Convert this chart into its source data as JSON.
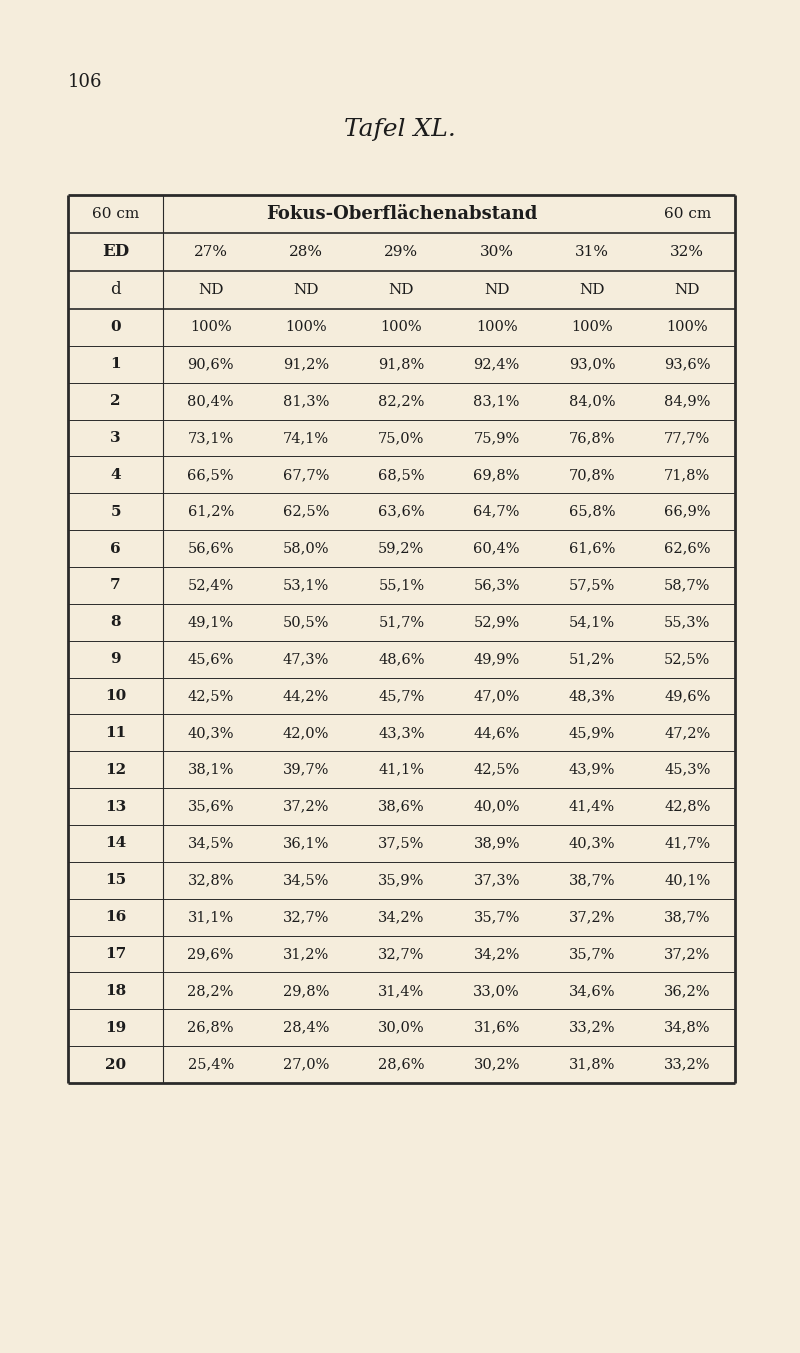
{
  "page_number": "106",
  "title": "Tafel XL.",
  "background_color": "#f5eddc",
  "header_row1_left": "60 cm",
  "header_row1_mid": "Fokus-Oberflächenabstand",
  "header_row1_right": "60 cm",
  "header_row2": [
    "ED",
    "27%",
    "28%",
    "29%",
    "30%",
    "31%",
    "32%"
  ],
  "header_row3": [
    "d",
    "ND",
    "ND",
    "ND",
    "ND",
    "ND",
    "ND"
  ],
  "data_rows": [
    [
      "0",
      "100%",
      "100%",
      "100%",
      "100%",
      "100%",
      "100%"
    ],
    [
      "1",
      "90,6%",
      "91,2%",
      "91,8%",
      "92,4%",
      "93,0%",
      "93,6%"
    ],
    [
      "2",
      "80,4%",
      "81,3%",
      "82,2%",
      "83,1%",
      "84,0%",
      "84,9%"
    ],
    [
      "3",
      "73,1%",
      "74,1%",
      "75,0%",
      "75,9%",
      "76,8%",
      "77,7%"
    ],
    [
      "4",
      "66,5%",
      "67,7%",
      "68,5%",
      "69,8%",
      "70,8%",
      "71,8%"
    ],
    [
      "5",
      "61,2%",
      "62,5%",
      "63,6%",
      "64,7%",
      "65,8%",
      "66,9%"
    ],
    [
      "6",
      "56,6%",
      "58,0%",
      "59,2%",
      "60,4%",
      "61,6%",
      "62,6%"
    ],
    [
      "7",
      "52,4%",
      "53,1%",
      "55,1%",
      "56,3%",
      "57,5%",
      "58,7%"
    ],
    [
      "8",
      "49,1%",
      "50,5%",
      "51,7%",
      "52,9%",
      "54,1%",
      "55,3%"
    ],
    [
      "9",
      "45,6%",
      "47,3%",
      "48,6%",
      "49,9%",
      "51,2%",
      "52,5%"
    ],
    [
      "10",
      "42,5%",
      "44,2%",
      "45,7%",
      "47,0%",
      "48,3%",
      "49,6%"
    ],
    [
      "11",
      "40,3%",
      "42,0%",
      "43,3%",
      "44,6%",
      "45,9%",
      "47,2%"
    ],
    [
      "12",
      "38,1%",
      "39,7%",
      "41,1%",
      "42,5%",
      "43,9%",
      "45,3%"
    ],
    [
      "13",
      "35,6%",
      "37,2%",
      "38,6%",
      "40,0%",
      "41,4%",
      "42,8%"
    ],
    [
      "14",
      "34,5%",
      "36,1%",
      "37,5%",
      "38,9%",
      "40,3%",
      "41,7%"
    ],
    [
      "15",
      "32,8%",
      "34,5%",
      "35,9%",
      "37,3%",
      "38,7%",
      "40,1%"
    ],
    [
      "16",
      "31,1%",
      "32,7%",
      "34,2%",
      "35,7%",
      "37,2%",
      "38,7%"
    ],
    [
      "17",
      "29,6%",
      "31,2%",
      "32,7%",
      "34,2%",
      "35,7%",
      "37,2%"
    ],
    [
      "18",
      "28,2%",
      "29,8%",
      "31,4%",
      "33,0%",
      "34,6%",
      "36,2%"
    ],
    [
      "19",
      "26,8%",
      "28,4%",
      "30,0%",
      "31,6%",
      "33,2%",
      "34,8%"
    ],
    [
      "20",
      "25,4%",
      "27,0%",
      "28,6%",
      "30,2%",
      "31,8%",
      "33,2%"
    ]
  ],
  "text_color": "#1c1c1c",
  "line_color": "#2a2a2a"
}
